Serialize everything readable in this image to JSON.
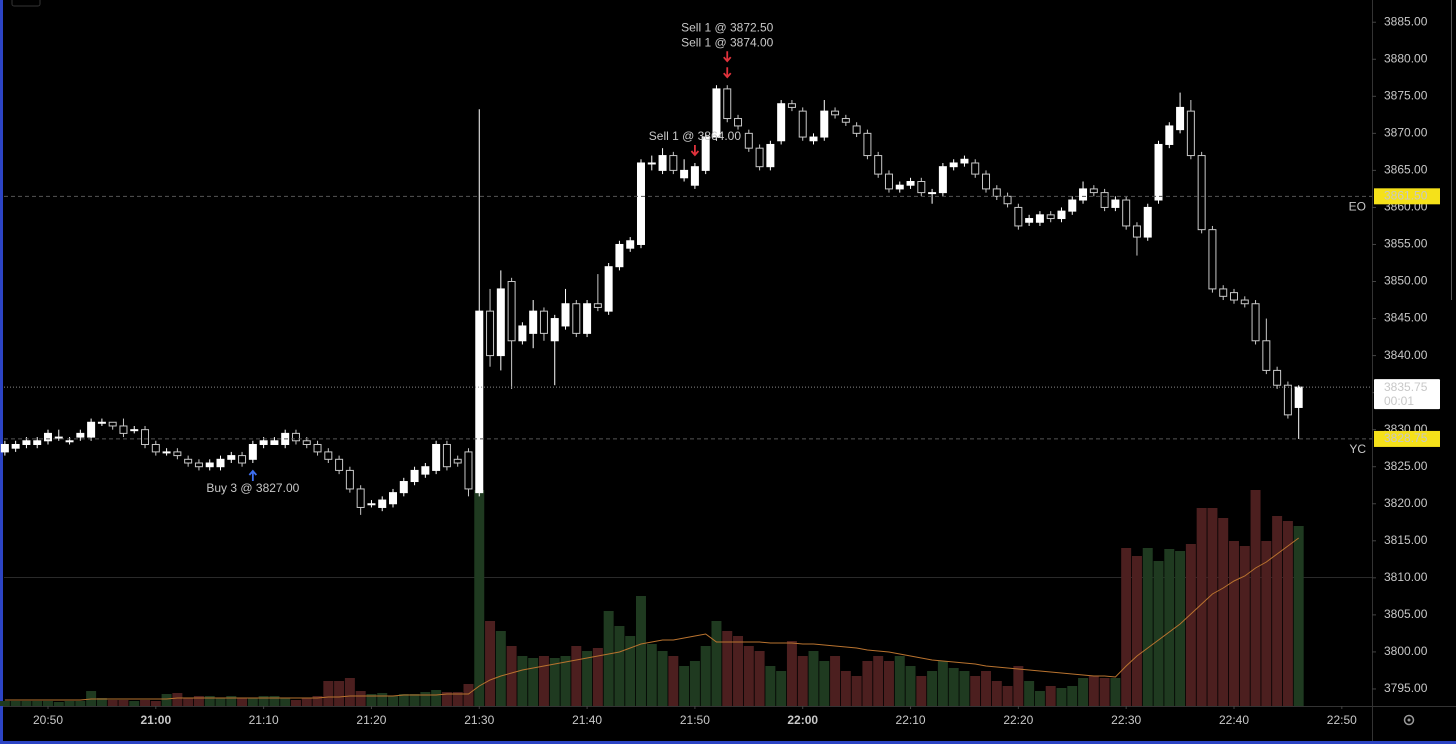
{
  "chart_data": {
    "type": "candlestick",
    "xlim": [
      1245.92,
      1372.8
    ],
    "ylim": [
      3792.7,
      3888.0
    ],
    "volume_ylim": [
      0,
      300
    ],
    "up_color": "#ffffff",
    "down_color": "#000000",
    "down_outline": "#c8c8c8",
    "up_volume_color": "#1f3a20",
    "down_volume_color": "#4c1f1f",
    "volume_ma_color": "#b9732f",
    "xticks": [
      {
        "value": 1250,
        "label": "20:50",
        "bold": false
      },
      {
        "value": 1260,
        "label": "21:00",
        "bold": true
      },
      {
        "value": 1270,
        "label": "21:10",
        "bold": false
      },
      {
        "value": 1280,
        "label": "21:20",
        "bold": false
      },
      {
        "value": 1290,
        "label": "21:30",
        "bold": false
      },
      {
        "value": 1300,
        "label": "21:40",
        "bold": false
      },
      {
        "value": 1310,
        "label": "21:50",
        "bold": false
      },
      {
        "value": 1320,
        "label": "22:00",
        "bold": true
      },
      {
        "value": 1330,
        "label": "22:10",
        "bold": false
      },
      {
        "value": 1340,
        "label": "22:20",
        "bold": false
      },
      {
        "value": 1350,
        "label": "22:30",
        "bold": false
      },
      {
        "value": 1360,
        "label": "22:40",
        "bold": false
      },
      {
        "value": 1370,
        "label": "22:50",
        "bold": false
      }
    ],
    "yticks": [
      {
        "value": 3795,
        "label": "3795.00"
      },
      {
        "value": 3800,
        "label": "3800.00"
      },
      {
        "value": 3805,
        "label": "3805.00"
      },
      {
        "value": 3810,
        "label": "3810.00"
      },
      {
        "value": 3815,
        "label": "3815.00"
      },
      {
        "value": 3820,
        "label": "3820.00"
      },
      {
        "value": 3825,
        "label": "3825.00"
      },
      {
        "value": 3830,
        "label": "3830.00"
      },
      {
        "value": 3835,
        "label": "3835.00"
      },
      {
        "value": 3840,
        "label": "3840.00"
      },
      {
        "value": 3845,
        "label": "3845.00"
      },
      {
        "value": 3850,
        "label": "3850.00"
      },
      {
        "value": 3855,
        "label": "3855.00"
      },
      {
        "value": 3860,
        "label": "3860.00"
      },
      {
        "value": 3865,
        "label": "3865.00"
      },
      {
        "value": 3870,
        "label": "3870.00"
      },
      {
        "value": 3875,
        "label": "3875.00"
      },
      {
        "value": 3880,
        "label": "3880.00"
      },
      {
        "value": 3885,
        "label": "3885.00"
      }
    ],
    "x": [
      1246,
      1247,
      1248,
      1249,
      1250,
      1251,
      1252,
      1253,
      1254,
      1255,
      1256,
      1257,
      1258,
      1259,
      1260,
      1261,
      1262,
      1263,
      1264,
      1265,
      1266,
      1267,
      1268,
      1269,
      1270,
      1271,
      1272,
      1273,
      1274,
      1275,
      1276,
      1277,
      1278,
      1279,
      1280,
      1281,
      1282,
      1283,
      1284,
      1285,
      1286,
      1287,
      1288,
      1289,
      1290,
      1291,
      1292,
      1293,
      1294,
      1295,
      1296,
      1297,
      1298,
      1299,
      1300,
      1301,
      1302,
      1303,
      1304,
      1305,
      1306,
      1307,
      1308,
      1309,
      1310,
      1311,
      1312,
      1313,
      1314,
      1315,
      1316,
      1317,
      1318,
      1319,
      1320,
      1321,
      1322,
      1323,
      1324,
      1325,
      1326,
      1327,
      1328,
      1329,
      1330,
      1331,
      1332,
      1333,
      1334,
      1335,
      1336,
      1337,
      1338,
      1339,
      1340,
      1341,
      1342,
      1343,
      1344,
      1345,
      1346,
      1347,
      1348,
      1349,
      1350,
      1351,
      1352,
      1353,
      1354,
      1355,
      1356,
      1357,
      1358,
      1359,
      1360,
      1361,
      1362,
      1363,
      1364,
      1365,
      1366
    ],
    "open": [
      3827,
      3827.5,
      3828,
      3828,
      3828.5,
      3829,
      3828.5,
      3829,
      3829,
      3831,
      3831,
      3830.5,
      3830,
      3830,
      3828,
      3827,
      3827,
      3826,
      3825.5,
      3825,
      3825,
      3826,
      3826.5,
      3826,
      3828,
      3828,
      3828,
      3829.5,
      3828.5,
      3828,
      3827,
      3826,
      3824.5,
      3822,
      3820,
      3819.5,
      3820,
      3821.5,
      3823,
      3824,
      3824.5,
      3828,
      3826,
      3827,
      3821.5,
      3846,
      3840,
      3850,
      3842,
      3843,
      3846,
      3842,
      3844,
      3847,
      3843,
      3847,
      3846,
      3852,
      3854.5,
      3855,
      3866,
      3865,
      3867,
      3864,
      3863,
      3865,
      3869.5,
      3876,
      3872,
      3870,
      3868,
      3865.5,
      3869,
      3874,
      3873,
      3869,
      3869.5,
      3873,
      3872,
      3871,
      3870,
      3867,
      3864.5,
      3862.5,
      3863,
      3863.5,
      3862,
      3862,
      3865.5,
      3866,
      3866,
      3864.5,
      3862.5,
      3861.5,
      3860,
      3858,
      3858,
      3859,
      3858.5,
      3859.5,
      3861,
      3862.5,
      3862,
      3860,
      3861,
      3857.5,
      3856,
      3861,
      3868.5,
      3870.5,
      3873,
      3867,
      3857,
      3849,
      3848.5,
      3847.5,
      3847,
      3842,
      3838,
      3836,
      3833
    ],
    "high": [
      3828.5,
      3828.5,
      3829,
      3829,
      3830,
      3830,
      3829,
      3830,
      3831.5,
      3831.5,
      3831,
      3831.5,
      3830.5,
      3830.5,
      3828.5,
      3827.5,
      3827.5,
      3826.5,
      3826,
      3826,
      3826.5,
      3827,
      3827,
      3828.5,
      3829,
      3829,
      3830,
      3830,
      3829,
      3828.5,
      3827.5,
      3826.5,
      3825,
      3822.5,
      3820.5,
      3821,
      3822,
      3823.5,
      3825,
      3825.5,
      3828.5,
      3828.5,
      3826.5,
      3827.5,
      3873.25,
      3849,
      3851.5,
      3850.5,
      3844.5,
      3847.5,
      3846.5,
      3845.5,
      3849,
      3847.5,
      3847.5,
      3851,
      3852.5,
      3855.5,
      3856,
      3866.5,
      3867,
      3868,
      3867.5,
      3866.5,
      3866,
      3870,
      3876.5,
      3876.5,
      3872.5,
      3870.5,
      3868.5,
      3869,
      3874.5,
      3874.5,
      3873.5,
      3870,
      3874.5,
      3873.5,
      3872.5,
      3871.5,
      3870.5,
      3867.5,
      3865,
      3863.5,
      3864,
      3864,
      3862.5,
      3866,
      3866.5,
      3867,
      3866.5,
      3865,
      3863,
      3862,
      3860.5,
      3859,
      3859.5,
      3859.5,
      3860,
      3861.5,
      3863.5,
      3863,
      3862.5,
      3861.5,
      3861.5,
      3858,
      3860.5,
      3869,
      3871.5,
      3875.5,
      3874.5,
      3867.5,
      3857.5,
      3849.5,
      3849,
      3848,
      3847.5,
      3845,
      3838.5,
      3836.5,
      3836
    ],
    "low": [
      3826.5,
      3827,
      3827.5,
      3827.5,
      3828,
      3828.5,
      3828,
      3828.5,
      3828.5,
      3830.5,
      3830,
      3829,
      3829.5,
      3827.5,
      3826.5,
      3826.5,
      3826,
      3825,
      3824.5,
      3824.5,
      3824.5,
      3825.5,
      3825,
      3825.5,
      3827.5,
      3828,
      3827.5,
      3828,
      3827.5,
      3826.5,
      3825.5,
      3824,
      3821.5,
      3818.5,
      3819.5,
      3819,
      3819.5,
      3821,
      3822.5,
      3823.5,
      3824,
      3824.5,
      3825,
      3821,
      3821,
      3838.5,
      3838,
      3835.5,
      3841.5,
      3841,
      3842,
      3836,
      3843.5,
      3842.5,
      3842.5,
      3846,
      3845.5,
      3851.5,
      3854,
      3854.5,
      3865,
      3864.5,
      3864.5,
      3863.5,
      3862.5,
      3864.5,
      3869,
      3871.5,
      3870.5,
      3867.5,
      3865,
      3865,
      3868.5,
      3873,
      3869,
      3868.5,
      3869,
      3872,
      3871,
      3869.5,
      3866.5,
      3864,
      3862,
      3862,
      3862.5,
      3861.5,
      3860.5,
      3861.5,
      3865,
      3865.5,
      3864,
      3862,
      3861,
      3860,
      3857,
      3857.5,
      3857.5,
      3858,
      3858,
      3859,
      3860.5,
      3861.5,
      3859.5,
      3859.5,
      3857,
      3853.5,
      3855.5,
      3860.5,
      3868,
      3870,
      3866.5,
      3856.5,
      3848.5,
      3847.5,
      3847,
      3846.5,
      3841.5,
      3837.5,
      3835.5,
      3831.5,
      3828.75
    ],
    "close": [
      3828,
      3828,
      3828.5,
      3828.5,
      3829.5,
      3829,
      3828.5,
      3829.5,
      3831,
      3831,
      3830.5,
      3829.5,
      3830,
      3828,
      3827,
      3827,
      3826.5,
      3825.5,
      3825,
      3825.5,
      3826,
      3826.5,
      3825.5,
      3828,
      3828.5,
      3828.5,
      3829.5,
      3828.5,
      3828,
      3827,
      3826,
      3824.5,
      3822,
      3819.5,
      3820,
      3820.5,
      3821.5,
      3823,
      3824.5,
      3825,
      3828,
      3825,
      3825.5,
      3822,
      3846,
      3840,
      3849,
      3842,
      3844,
      3846,
      3843,
      3845,
      3847,
      3843,
      3847,
      3846.5,
      3852,
      3855,
      3855.5,
      3866,
      3866,
      3867,
      3865,
      3865,
      3865.5,
      3869.5,
      3876,
      3872,
      3871,
      3868,
      3865.5,
      3868.5,
      3874,
      3873.5,
      3869.5,
      3869.5,
      3873,
      3872.5,
      3871.5,
      3870,
      3867,
      3864.5,
      3862.5,
      3863,
      3863.5,
      3862,
      3862,
      3865.5,
      3866,
      3866.5,
      3864.5,
      3862.5,
      3861.5,
      3860.5,
      3857.5,
      3858.5,
      3859,
      3858.5,
      3859.5,
      3861,
      3862.5,
      3862,
      3860,
      3861,
      3857.5,
      3856,
      3860,
      3868.5,
      3871,
      3873.5,
      3867,
      3857,
      3849,
      3848,
      3847.5,
      3847,
      3842,
      3838,
      3836,
      3832,
      3835.75
    ],
    "volume": [
      5,
      5,
      5,
      5,
      5,
      4,
      5,
      5,
      15,
      8,
      6,
      6,
      5,
      6,
      5,
      12,
      13,
      8,
      10,
      10,
      8,
      10,
      8,
      8,
      10,
      10,
      8,
      6,
      8,
      10,
      25,
      25,
      28,
      15,
      12,
      13,
      10,
      12,
      12,
      14,
      16,
      14,
      14,
      22,
      216,
      85,
      75,
      60,
      50,
      48,
      50,
      48,
      50,
      60,
      55,
      58,
      95,
      80,
      70,
      110,
      62,
      55,
      50,
      40,
      45,
      60,
      85,
      75,
      70,
      60,
      55,
      40,
      35,
      65,
      50,
      55,
      45,
      50,
      35,
      30,
      45,
      50,
      45,
      50,
      40,
      30,
      35,
      45,
      38,
      35,
      30,
      35,
      25,
      20,
      40,
      25,
      15,
      20,
      18,
      20,
      28,
      30,
      28,
      28,
      158,
      150,
      158,
      145,
      157,
      155,
      162,
      198,
      198,
      188,
      165,
      160,
      216,
      165,
      190,
      185,
      180
    ],
    "volume_ma": [
      6,
      6,
      6,
      6,
      6,
      6,
      6,
      6,
      7,
      7,
      7,
      7,
      7,
      7,
      7,
      7,
      8,
      8,
      8,
      8,
      8,
      8,
      8,
      8,
      8,
      8,
      8,
      8,
      8,
      8,
      9,
      9,
      10,
      10,
      10,
      10,
      10,
      11,
      11,
      11,
      11,
      12,
      12,
      12,
      20,
      26,
      30,
      33,
      36,
      38,
      40,
      42,
      44,
      46,
      48,
      50,
      52,
      54,
      58,
      62,
      64,
      66,
      66,
      68,
      70,
      72,
      64,
      64,
      64,
      64,
      64,
      63,
      63,
      63,
      62,
      62,
      61,
      60,
      59,
      58,
      56,
      55,
      54,
      52,
      50,
      48,
      46,
      45,
      44,
      43,
      42,
      40,
      39,
      38,
      37,
      36,
      35,
      34,
      33,
      32,
      31,
      30,
      30,
      29,
      40,
      50,
      58,
      66,
      74,
      82,
      92,
      102,
      112,
      118,
      125,
      130,
      138,
      144,
      152,
      160,
      168
    ],
    "markers": [
      {
        "x": 1269,
        "side": "buy",
        "label": "Buy 3 @ 3827.00",
        "color": "#3d6ff0"
      },
      {
        "x": 1310,
        "side": "sell",
        "label": "Sell 1 @ 3864.00",
        "color": "#e0323c"
      },
      {
        "x": 1313,
        "side": "sell",
        "label": "Sell 1 @ 3874.00",
        "color": "#e0323c"
      },
      {
        "x": 1313,
        "side": "sell",
        "label": "Sell 1 @ 3872.50",
        "color": "#e0323c"
      }
    ],
    "levels": [
      {
        "name": "EO",
        "value": 3861.5,
        "label": "3861.50",
        "color": "#f5e11a"
      },
      {
        "name": "YC",
        "value": 3828.75,
        "label": "3828.75",
        "color": "#f5e11a"
      }
    ],
    "last_price": {
      "value": 3835.75,
      "label": "3835.75",
      "countdown": "00:01"
    }
  }
}
